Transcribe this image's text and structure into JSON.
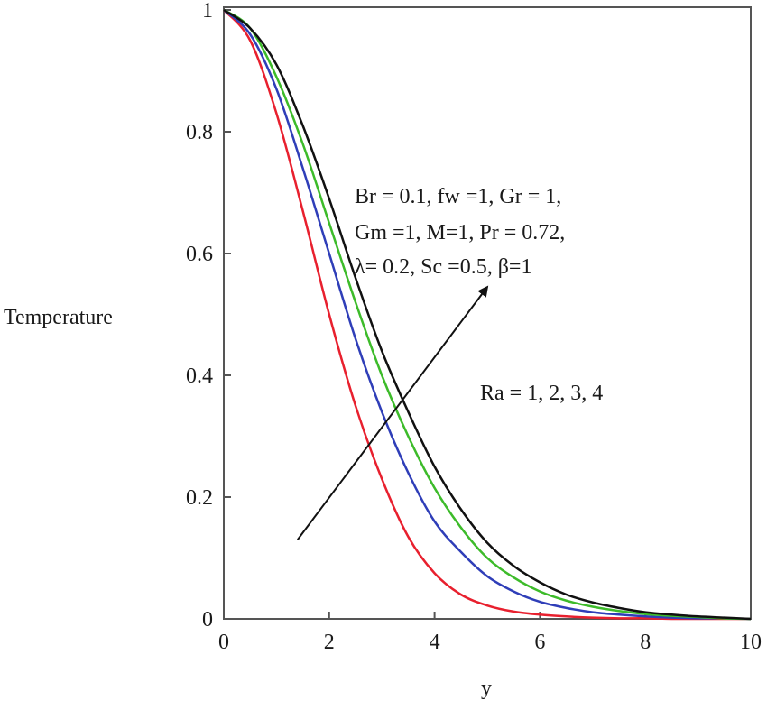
{
  "chart_data": {
    "type": "line",
    "title": "",
    "xlabel": "y",
    "ylabel": "Temperature",
    "xlim": [
      0,
      10
    ],
    "ylim": [
      0,
      1
    ],
    "grid": false,
    "x_ticks": [
      "0",
      "2",
      "4",
      "6",
      "8",
      "10"
    ],
    "y_ticks": [
      "0",
      "0.2",
      "0.4",
      "0.6",
      "0.8",
      "1"
    ],
    "series": [
      {
        "color": "#e8202e",
        "x": [
          0,
          0.5,
          1,
          1.5,
          2,
          2.5,
          3,
          3.5,
          4,
          4.5,
          5,
          5.5,
          6,
          6.5,
          7,
          7.5,
          8,
          8.5,
          9,
          9.5,
          10
        ],
        "values": [
          1,
          0.95,
          0.83,
          0.67,
          0.5,
          0.35,
          0.23,
          0.135,
          0.075,
          0.04,
          0.022,
          0.012,
          0.007,
          0.004,
          0.002,
          0.001,
          0.001,
          0,
          0,
          0,
          0
        ]
      },
      {
        "color": "#2f3eb8",
        "x": [
          0,
          0.5,
          1,
          1.5,
          2,
          2.5,
          3,
          3.5,
          4,
          4.5,
          5,
          5.5,
          6,
          6.5,
          7,
          7.5,
          8,
          8.5,
          9,
          9.5,
          10
        ],
        "values": [
          1,
          0.96,
          0.87,
          0.74,
          0.6,
          0.46,
          0.34,
          0.24,
          0.16,
          0.11,
          0.07,
          0.045,
          0.028,
          0.018,
          0.011,
          0.007,
          0.004,
          0.002,
          0.001,
          0.001,
          0
        ]
      },
      {
        "color": "#3dbb2a",
        "x": [
          0,
          0.5,
          1,
          1.5,
          2,
          2.5,
          3,
          3.5,
          4,
          4.5,
          5,
          5.5,
          6,
          6.5,
          7,
          7.5,
          8,
          8.5,
          9,
          9.5,
          10
        ],
        "values": [
          1,
          0.97,
          0.89,
          0.78,
          0.65,
          0.52,
          0.4,
          0.3,
          0.215,
          0.15,
          0.1,
          0.068,
          0.045,
          0.03,
          0.02,
          0.013,
          0.008,
          0.005,
          0.003,
          0.001,
          0
        ]
      },
      {
        "color": "#111111",
        "x": [
          0,
          0.5,
          1,
          1.5,
          2,
          2.5,
          3,
          3.5,
          4,
          4.5,
          5,
          5.5,
          6,
          6.5,
          7,
          7.5,
          8,
          8.5,
          9,
          9.5,
          10
        ],
        "values": [
          1,
          0.97,
          0.91,
          0.81,
          0.69,
          0.56,
          0.44,
          0.34,
          0.25,
          0.18,
          0.125,
          0.087,
          0.06,
          0.04,
          0.027,
          0.018,
          0.011,
          0.007,
          0.004,
          0.002,
          0
        ]
      }
    ],
    "annotations": {
      "params_line1": "Br = 0.1, fw =1, Gr = 1,",
      "params_line2": "Gm =1, M=1, Pr = 0.72,",
      "params_line3": "λ= 0.2, Sc =0.5, β=1",
      "ra_label": "Ra = 1, 2, 3, 4"
    },
    "arrow": {
      "from": [
        1.4,
        0.13
      ],
      "to": [
        5.0,
        0.545
      ]
    }
  }
}
